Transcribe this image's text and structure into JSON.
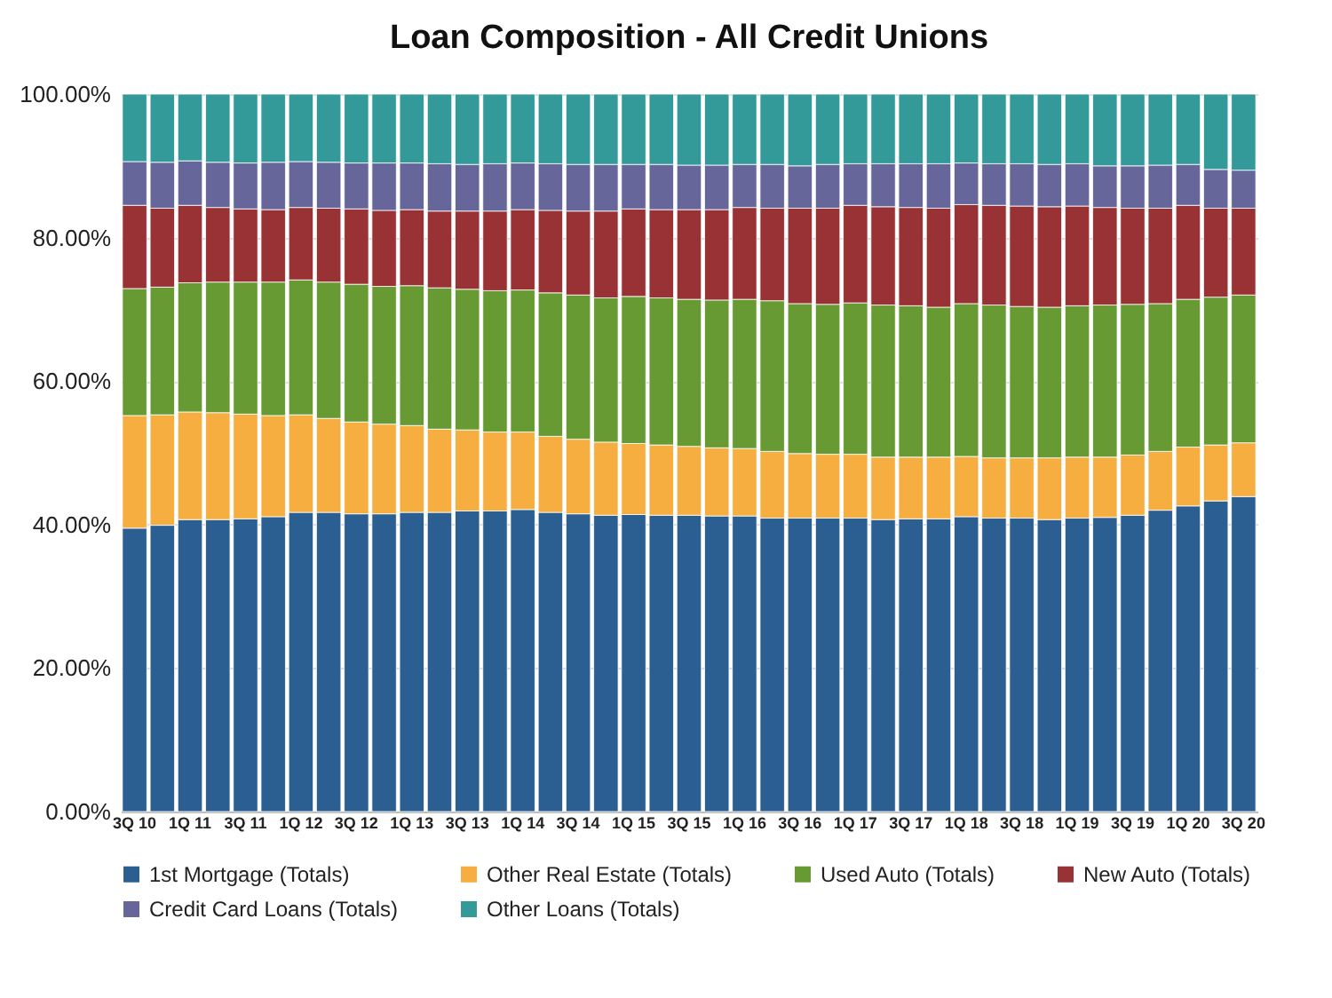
{
  "chart_data": {
    "type": "bar",
    "stacked": true,
    "title": "Loan Composition - All Credit Unions",
    "categories": [
      "3Q 10",
      null,
      "1Q 11",
      null,
      "3Q 11",
      null,
      "1Q 12",
      null,
      "3Q 12",
      null,
      "1Q 13",
      null,
      "3Q 13",
      null,
      "1Q 14",
      null,
      "3Q 14",
      null,
      "1Q 15",
      null,
      "3Q 15",
      null,
      "1Q 16",
      null,
      "3Q 16",
      null,
      "1Q 17",
      null,
      "3Q 17",
      null,
      "1Q 18",
      null,
      "3Q 18",
      null,
      "1Q 19",
      null,
      "3Q 19",
      null,
      "1Q 20",
      null,
      "3Q 20"
    ],
    "series": [
      {
        "name": "1st Mortgage (Totals)",
        "color": "#2b5f91",
        "values": [
          39.5,
          39.9,
          40.7,
          40.7,
          40.8,
          41.1,
          41.7,
          41.7,
          41.5,
          41.5,
          41.7,
          41.7,
          41.9,
          41.9,
          42.1,
          41.7,
          41.5,
          41.3,
          41.4,
          41.3,
          41.3,
          41.2,
          41.2,
          40.9,
          40.9,
          40.9,
          40.9,
          40.7,
          40.8,
          40.8,
          41.1,
          40.9,
          40.9,
          40.7,
          40.9,
          41.0,
          41.3,
          42.0,
          42.6,
          43.3,
          43.9
        ]
      },
      {
        "name": "Other Real Estate (Totals)",
        "color": "#f6ae40",
        "values": [
          15.7,
          15.4,
          15.0,
          14.9,
          14.6,
          14.1,
          13.6,
          13.1,
          12.8,
          12.5,
          12.1,
          11.6,
          11.3,
          11.0,
          10.8,
          10.6,
          10.4,
          10.2,
          9.9,
          9.8,
          9.6,
          9.5,
          9.4,
          9.3,
          9.0,
          8.9,
          8.9,
          8.7,
          8.6,
          8.6,
          8.4,
          8.4,
          8.4,
          8.6,
          8.5,
          8.4,
          8.4,
          8.2,
          8.2,
          7.8,
          7.5
        ]
      },
      {
        "name": "Used Auto (Totals)",
        "color": "#679a33",
        "values": [
          17.7,
          17.8,
          18.0,
          18.2,
          18.4,
          18.6,
          18.8,
          19.0,
          19.2,
          19.2,
          19.5,
          19.7,
          19.6,
          19.7,
          19.8,
          20.0,
          20.1,
          20.1,
          20.5,
          20.5,
          20.5,
          20.6,
          20.8,
          21.0,
          20.9,
          20.9,
          21.1,
          21.2,
          21.1,
          20.9,
          21.3,
          21.3,
          21.1,
          21.0,
          21.1,
          21.2,
          21.0,
          20.6,
          20.6,
          20.6,
          20.6
        ]
      },
      {
        "name": "New Auto (Totals)",
        "color": "#983234",
        "values": [
          11.6,
          11.0,
          10.8,
          10.4,
          10.2,
          10.1,
          10.1,
          10.3,
          10.5,
          10.6,
          10.6,
          10.7,
          10.9,
          11.1,
          11.2,
          11.5,
          11.7,
          12.1,
          12.2,
          12.3,
          12.5,
          12.6,
          12.8,
          12.9,
          13.3,
          13.4,
          13.6,
          13.7,
          13.7,
          13.8,
          13.8,
          13.9,
          14.0,
          14.0,
          13.9,
          13.6,
          13.4,
          13.3,
          13.1,
          12.4,
          12.1
        ]
      },
      {
        "name": "Credit Card Loans (Totals)",
        "color": "#67669b",
        "values": [
          6.1,
          6.4,
          6.2,
          6.3,
          6.4,
          6.6,
          6.4,
          6.4,
          6.4,
          6.6,
          6.5,
          6.6,
          6.5,
          6.6,
          6.5,
          6.5,
          6.5,
          6.5,
          6.2,
          6.3,
          6.2,
          6.2,
          6.0,
          6.1,
          5.9,
          6.1,
          5.8,
          6.0,
          6.1,
          6.2,
          5.8,
          5.8,
          5.9,
          5.9,
          5.9,
          5.8,
          5.9,
          6.0,
          5.7,
          5.4,
          5.3
        ]
      },
      {
        "name": "Other Loans (Totals)",
        "color": "#339a99",
        "values": [
          9.4,
          9.5,
          9.3,
          9.5,
          9.6,
          9.5,
          9.4,
          9.5,
          9.6,
          9.6,
          9.6,
          9.7,
          9.8,
          9.7,
          9.6,
          9.7,
          9.8,
          9.8,
          9.8,
          9.8,
          9.9,
          9.9,
          9.8,
          9.8,
          10.0,
          9.8,
          9.7,
          9.7,
          9.7,
          9.7,
          9.6,
          9.7,
          9.7,
          9.8,
          9.7,
          10.0,
          10.0,
          9.9,
          9.8,
          10.5,
          10.6
        ]
      }
    ],
    "ylim": [
      0,
      100
    ],
    "yticks": [
      {
        "value": 0,
        "label": "0.00%"
      },
      {
        "value": 20,
        "label": "20.00%"
      },
      {
        "value": 40,
        "label": "40.00%"
      },
      {
        "value": 60,
        "label": "60.00%"
      },
      {
        "value": 80,
        "label": "80.00%"
      },
      {
        "value": 100,
        "label": "100.00%"
      }
    ],
    "grid": "y",
    "legend": "bottom"
  }
}
